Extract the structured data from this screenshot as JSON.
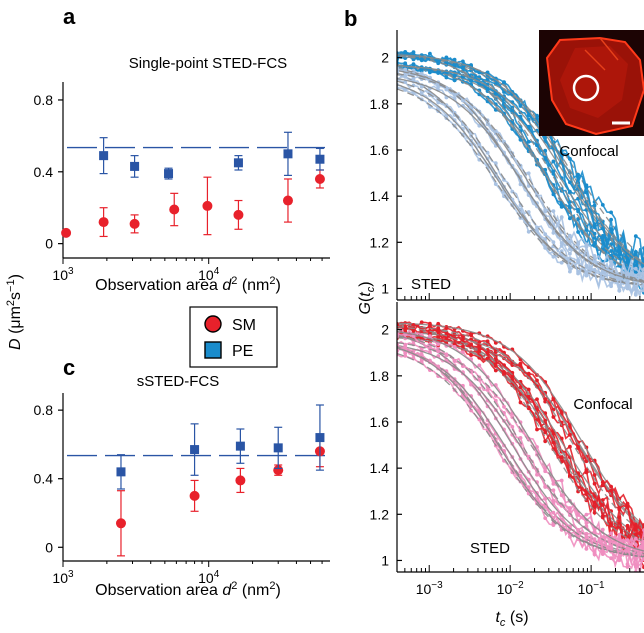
{
  "panel_labels": {
    "a": "a",
    "b": "b",
    "c": "c"
  },
  "legend": {
    "sm": "SM",
    "pe": "PE",
    "sm_color": "#e8212b",
    "pe_color": "#2a55a5"
  },
  "shared_ylabel_ac": "D (μm² s⁻¹)",
  "chart_data": [
    {
      "id": "a",
      "type": "scatter",
      "title": "Single-point STED-FCS",
      "xlabel": "Observation area d² (nm²)",
      "xscale": "log",
      "xlim": [
        1000,
        68000
      ],
      "ylim": [
        -0.08,
        0.9
      ],
      "xticks": [
        {
          "v": 1000,
          "base": "10",
          "exp": "3"
        },
        {
          "v": 10000,
          "base": "10",
          "exp": "4"
        }
      ],
      "yticks": [
        {
          "v": 0,
          "label": "0"
        },
        {
          "v": 0.4,
          "label": "0.4"
        },
        {
          "v": 0.8,
          "label": "0.8"
        }
      ],
      "reference_line": {
        "y": 0.535,
        "style": "dashed"
      },
      "series": [
        {
          "name": "SM",
          "color": "#e8212b",
          "marker": "circle",
          "x": [
            1050,
            1900,
            3100,
            5800,
            9800,
            16000,
            35000,
            58000
          ],
          "y": [
            0.06,
            0.12,
            0.11,
            0.19,
            0.21,
            0.16,
            0.24,
            0.36
          ],
          "err": [
            0.01,
            0.08,
            0.05,
            0.09,
            0.16,
            0.08,
            0.12,
            0.05
          ]
        },
        {
          "name": "PE",
          "color": "#2a55a5",
          "marker": "square",
          "x": [
            1900,
            3100,
            5300,
            16000,
            35000,
            58000
          ],
          "y": [
            0.49,
            0.43,
            0.39,
            0.45,
            0.5,
            0.47
          ],
          "err": [
            0.1,
            0.06,
            0.03,
            0.04,
            0.12,
            0.06
          ]
        }
      ]
    },
    {
      "id": "c",
      "type": "scatter",
      "title": "sSTED-FCS",
      "xlabel": "Observation area d² (nm²)",
      "xscale": "log",
      "xlim": [
        1000,
        68000
      ],
      "ylim": [
        -0.08,
        0.9
      ],
      "xticks": [
        {
          "v": 1000,
          "base": "10",
          "exp": "3"
        },
        {
          "v": 10000,
          "base": "10",
          "exp": "4"
        }
      ],
      "yticks": [
        {
          "v": 0,
          "label": "0"
        },
        {
          "v": 0.4,
          "label": "0.4"
        },
        {
          "v": 0.8,
          "label": "0.8"
        }
      ],
      "reference_line": {
        "y": 0.535,
        "style": "dashed"
      },
      "series": [
        {
          "name": "SM",
          "color": "#e8212b",
          "marker": "circle",
          "x": [
            2500,
            8000,
            16500,
            30000,
            58000
          ],
          "y": [
            0.14,
            0.3,
            0.39,
            0.45,
            0.56
          ],
          "err": [
            0.19,
            0.09,
            0.07,
            0.03,
            0.09
          ]
        },
        {
          "name": "PE",
          "color": "#2a55a5",
          "marker": "square",
          "x": [
            2500,
            8000,
            16500,
            30000,
            58000
          ],
          "y": [
            0.44,
            0.57,
            0.59,
            0.58,
            0.64
          ],
          "err": [
            0.1,
            0.15,
            0.1,
            0.12,
            0.19
          ]
        }
      ]
    },
    {
      "id": "b",
      "type": "line",
      "xlabel": "tc (s)",
      "ylabel": "G(tc)",
      "xscale": "log",
      "xlim": [
        0.0004,
        0.45
      ],
      "ylim_top": [
        0.95,
        2.12
      ],
      "ylim_bottom": [
        0.95,
        2.12
      ],
      "xticks": [
        {
          "v": 0.001,
          "base": "10",
          "exp": "−3"
        },
        {
          "v": 0.01,
          "base": "10",
          "exp": "−2"
        },
        {
          "v": 0.1,
          "base": "10",
          "exp": "−1"
        }
      ],
      "yticks": [
        {
          "v": 1,
          "label": "1"
        },
        {
          "v": 1.2,
          "label": "1.2"
        },
        {
          "v": 1.4,
          "label": "1.4"
        },
        {
          "v": 1.6,
          "label": "1.6"
        },
        {
          "v": 1.8,
          "label": "1.8"
        },
        {
          "v": 2,
          "label": "2"
        }
      ],
      "top": {
        "annotations": [
          "Confocal",
          "STED"
        ],
        "series": [
          {
            "name": "Confocal",
            "color": "#1a8ccc",
            "amplitude": 1.0,
            "tau": 0.045,
            "count": 11
          },
          {
            "name": "STED",
            "color": "#a9c2e2",
            "amplitude": 0.95,
            "tau": 0.012,
            "count": 9
          }
        ],
        "fit_color": "#8a8a8a"
      },
      "bottom": {
        "annotations": [
          "Confocal",
          "STED"
        ],
        "series": [
          {
            "name": "Confocal",
            "color": "#e3202a",
            "amplitude": 1.0,
            "tau": 0.05,
            "count": 10
          },
          {
            "name": "STED",
            "color": "#ef8ec0",
            "amplitude": 0.98,
            "tau": 0.012,
            "count": 9
          }
        ],
        "fit_color": "#8a8a8a"
      }
    }
  ]
}
